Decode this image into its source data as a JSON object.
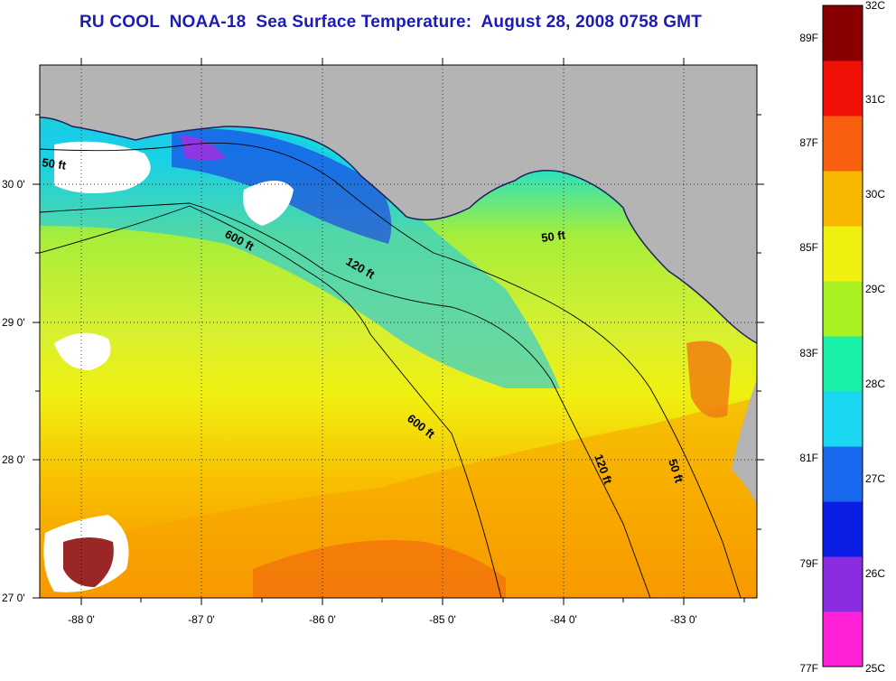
{
  "title": "RU COOL  NOAA-18  Sea Surface Temperature:  August 28, 2008 0758 GMT",
  "map": {
    "lon_labels": [
      "-88 0'",
      "-87 0'",
      "-86 0'",
      "-85 0'",
      "-84 0'",
      "-83 0'"
    ],
    "lat_labels": [
      "30 0'",
      "29 0'",
      "28 0'",
      "27 0'"
    ],
    "contour_labels": [
      "50 ft",
      "600 ft",
      "120 ft",
      "50 ft",
      "600 ft",
      "120 ft",
      "50 ft"
    ]
  },
  "colorbar": {
    "celsius_labels": [
      "32C",
      "31C",
      "30C",
      "29C",
      "28C",
      "27C",
      "26C",
      "25C"
    ],
    "fahrenheit_labels": [
      "89F",
      "87F",
      "85F",
      "83F",
      "81F",
      "79F",
      "77F"
    ],
    "colors": [
      "#ff22d8",
      "#8a2ce0",
      "#0a1ee6",
      "#1a6af0",
      "#1ad6f0",
      "#19f0a8",
      "#a8f020",
      "#f0f010",
      "#f8b800",
      "#f86010",
      "#f01008",
      "#8a0000"
    ]
  },
  "colors": {
    "title": "#1c1cb4",
    "land": "#b4b4b4",
    "cloud": "#ffffff"
  }
}
